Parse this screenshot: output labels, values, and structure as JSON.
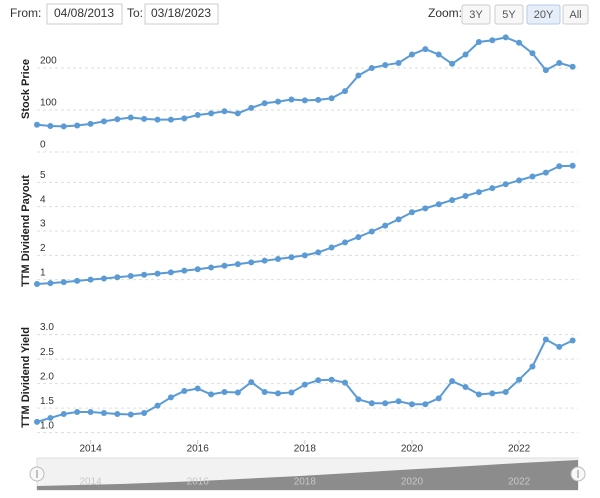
{
  "controls": {
    "from_label": "From:",
    "from": "04/08/2013",
    "to_label": "To:",
    "to": "03/18/2023",
    "zoom_label": "Zoom:",
    "zoom": [
      "3Y",
      "5Y",
      "20Y",
      "All"
    ],
    "active_zoom": 2
  },
  "chart_data": [
    {
      "type": "line",
      "y_label": "Stock Price",
      "color": "#5b9bd5",
      "grid": true,
      "x": [
        2013,
        2013.25,
        2013.5,
        2013.75,
        2014,
        2014.25,
        2014.5,
        2014.75,
        2015,
        2015.25,
        2015.5,
        2015.75,
        2016,
        2016.25,
        2016.5,
        2016.75,
        2017,
        2017.25,
        2017.5,
        2017.75,
        2018,
        2018.25,
        2018.5,
        2018.75,
        2019,
        2019.25,
        2019.5,
        2019.75,
        2020,
        2020.25,
        2020.5,
        2020.75,
        2021,
        2021.25,
        2021.5,
        2021.75,
        2022,
        2022.25,
        2022.5,
        2022.75,
        2023
      ],
      "values": [
        65,
        62,
        61,
        63,
        67,
        73,
        78,
        82,
        79,
        77,
        77,
        80,
        88,
        92,
        97,
        92,
        105,
        116,
        120,
        125,
        123,
        124,
        128,
        145,
        182,
        200,
        207,
        212,
        232,
        245,
        232,
        210,
        232,
        262,
        266,
        273,
        260,
        235,
        195,
        212,
        203
      ],
      "xlim": [
        2013,
        2023.1
      ],
      "ylim": [
        0,
        300
      ],
      "yticks": [
        0,
        100,
        200
      ]
    },
    {
      "type": "line",
      "y_label": "TTM Dividend Payout",
      "color": "#5b9bd5",
      "grid": true,
      "x": [
        2013,
        2013.25,
        2013.5,
        2013.75,
        2014,
        2014.25,
        2014.5,
        2014.75,
        2015,
        2015.25,
        2015.5,
        2015.75,
        2016,
        2016.25,
        2016.5,
        2016.75,
        2017,
        2017.25,
        2017.5,
        2017.75,
        2018,
        2018.25,
        2018.5,
        2018.75,
        2019,
        2019.25,
        2019.5,
        2019.75,
        2020,
        2020.25,
        2020.5,
        2020.75,
        2021,
        2021.25,
        2021.5,
        2021.75,
        2022,
        2022.25,
        2022.5,
        2022.75,
        2023
      ],
      "values": [
        0.82,
        0.86,
        0.9,
        0.95,
        1.0,
        1.05,
        1.1,
        1.15,
        1.2,
        1.25,
        1.3,
        1.37,
        1.43,
        1.5,
        1.57,
        1.64,
        1.71,
        1.78,
        1.85,
        1.92,
        2.0,
        2.12,
        2.32,
        2.53,
        2.75,
        2.98,
        3.22,
        3.48,
        3.77,
        3.93,
        4.1,
        4.27,
        4.44,
        4.6,
        4.76,
        4.92,
        5.08,
        5.24,
        5.4,
        5.66,
        5.68
      ],
      "xlim": [
        2013,
        2023.1
      ],
      "ylim": [
        0,
        6
      ],
      "yticks": [
        1,
        2,
        3,
        4,
        5
      ]
    },
    {
      "type": "line",
      "y_label": "TTM Dividend Yield",
      "color": "#5b9bd5",
      "grid": true,
      "x": [
        2013,
        2013.25,
        2013.5,
        2013.75,
        2014,
        2014.25,
        2014.5,
        2014.75,
        2015,
        2015.25,
        2015.5,
        2015.75,
        2016,
        2016.25,
        2016.5,
        2016.75,
        2017,
        2017.25,
        2017.5,
        2017.75,
        2018,
        2018.25,
        2018.5,
        2018.75,
        2019,
        2019.25,
        2019.5,
        2019.75,
        2020,
        2020.25,
        2020.5,
        2020.75,
        2021,
        2021.25,
        2021.5,
        2021.75,
        2022,
        2022.25,
        2022.5,
        2022.75,
        2023
      ],
      "values": [
        1.22,
        1.3,
        1.38,
        1.42,
        1.42,
        1.4,
        1.38,
        1.37,
        1.4,
        1.55,
        1.72,
        1.85,
        1.9,
        1.78,
        1.83,
        1.82,
        2.03,
        1.83,
        1.8,
        1.82,
        1.98,
        2.07,
        2.08,
        2.02,
        1.68,
        1.6,
        1.6,
        1.64,
        1.58,
        1.58,
        1.7,
        2.05,
        1.93,
        1.78,
        1.8,
        1.83,
        2.08,
        2.35,
        2.9,
        2.75,
        2.88
      ],
      "xlim": [
        2013,
        2023.1
      ],
      "ylim": [
        0.85,
        3.4
      ],
      "yticks": [
        {
          "value": 1,
          "label": "1.0"
        },
        1.5,
        {
          "value": 2,
          "label": "2.0"
        },
        2.5,
        {
          "value": 3,
          "label": "3.0"
        }
      ],
      "xticks": [
        2014,
        2016,
        2018,
        2020,
        2022
      ]
    }
  ]
}
